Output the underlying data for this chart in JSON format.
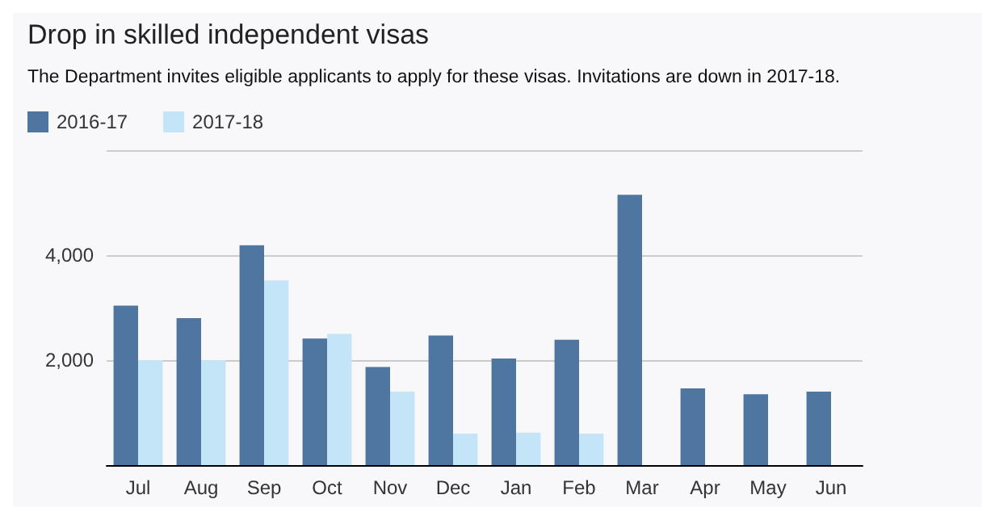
{
  "chart_data": {
    "type": "bar",
    "title": "Drop in skilled independent visas",
    "subtitle": "The Department invites eligible applicants to apply for these visas. Invitations are down in 2017-18.",
    "categories": [
      "Jul",
      "Aug",
      "Sep",
      "Oct",
      "Nov",
      "Dec",
      "Jan",
      "Feb",
      "Mar",
      "Apr",
      "May",
      "Jun"
    ],
    "series": [
      {
        "name": "2016-17",
        "color": "#4f76a0",
        "values": [
          3040,
          2800,
          4190,
          2410,
          1870,
          2470,
          2030,
          2390,
          5150,
          1460,
          1350,
          1400
        ]
      },
      {
        "name": "2017-18",
        "color": "#c4e5f7",
        "values": [
          2000,
          2000,
          3520,
          2500,
          1400,
          600,
          620,
          600,
          null,
          null,
          null,
          null
        ]
      }
    ],
    "yticks": [
      {
        "value": 2000,
        "label": "2,000"
      },
      {
        "value": 4000,
        "label": "4,000"
      },
      {
        "value": 6000,
        "label": null
      }
    ],
    "ylim": [
      0,
      6000
    ],
    "grid": "y",
    "legend": "top left"
  }
}
